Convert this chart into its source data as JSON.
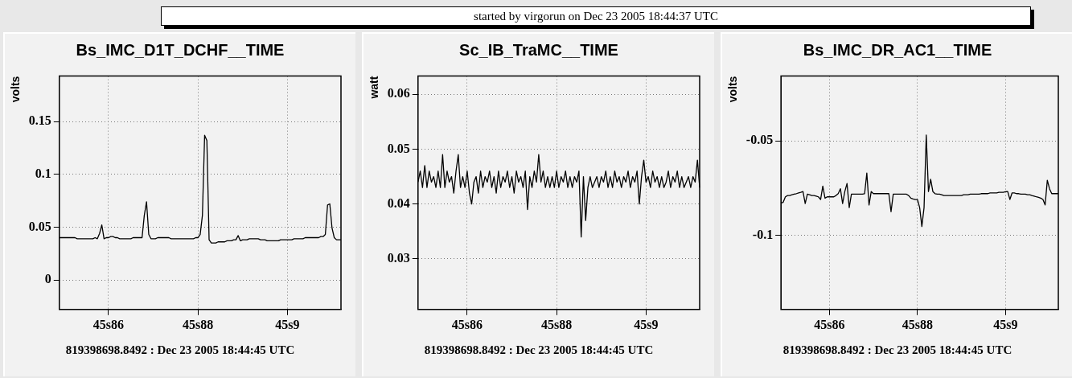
{
  "chart_data": [
    {
      "type": "other",
      "title": "started by virgorun on Dec 23 2005 18:44:37 UTC"
    },
    {
      "type": "line",
      "title": "Bs_IMC_D1T_DCHF__TIME",
      "ylabel": "volts",
      "annotations": [
        "819398698.8492 : Dec 23 2005 18:44:45 UTC"
      ],
      "grid": true,
      "line_style": "solid",
      "categories": [
        null,
        null,
        null,
        null,
        null,
        null,
        null,
        null,
        null,
        null,
        null,
        null,
        null,
        null,
        null,
        null,
        null,
        null,
        null,
        null,
        null,
        null,
        "45s86",
        null,
        null,
        null,
        null,
        null,
        null,
        null,
        null,
        null,
        null,
        null,
        null,
        null,
        null,
        null,
        null,
        null,
        null,
        null,
        null,
        null,
        null,
        null,
        null,
        null,
        null,
        null,
        null,
        null,
        null,
        null,
        null,
        null,
        null,
        null,
        null,
        null,
        null,
        null,
        "45s88",
        null,
        null,
        null,
        null,
        null,
        null,
        null,
        null,
        null,
        null,
        null,
        null,
        null,
        null,
        null,
        null,
        null,
        null,
        null,
        null,
        null,
        null,
        null,
        null,
        null,
        null,
        null,
        null,
        null,
        null,
        null,
        null,
        null,
        null,
        null,
        null,
        null,
        null,
        null,
        "45s9",
        null,
        null,
        null,
        null,
        null,
        null,
        null,
        null,
        null,
        null,
        null,
        null,
        null,
        null,
        null,
        null,
        null,
        null,
        null,
        null,
        null,
        null,
        null,
        null
      ],
      "ylim": [
        -0.028,
        0.193
      ],
      "yticks": [
        0,
        0.05,
        0.1,
        0.15
      ],
      "series": [
        {
          "color": "#000000",
          "values": [
            0.04,
            0.04,
            0.04,
            0.04,
            0.04,
            0.04,
            0.04,
            0.04,
            0.039,
            0.039,
            0.039,
            0.039,
            0.039,
            0.039,
            0.039,
            0.039,
            0.04,
            0.039,
            0.044,
            0.052,
            0.039,
            0.04,
            0.04,
            0.041,
            0.041,
            0.04,
            0.04,
            0.039,
            0.039,
            0.039,
            0.039,
            0.039,
            0.039,
            0.04,
            0.04,
            0.04,
            0.04,
            0.04,
            0.061,
            0.074,
            0.043,
            0.039,
            0.039,
            0.039,
            0.04,
            0.04,
            0.04,
            0.04,
            0.04,
            0.04,
            0.039,
            0.039,
            0.039,
            0.039,
            0.039,
            0.039,
            0.039,
            0.039,
            0.039,
            0.039,
            0.039,
            0.04,
            0.04,
            0.043,
            0.061,
            0.137,
            0.132,
            0.038,
            0.035,
            0.035,
            0.035,
            0.036,
            0.036,
            0.036,
            0.036,
            0.037,
            0.037,
            0.037,
            0.038,
            0.038,
            0.042,
            0.037,
            0.038,
            0.038,
            0.038,
            0.039,
            0.039,
            0.039,
            0.039,
            0.039,
            0.038,
            0.038,
            0.038,
            0.037,
            0.037,
            0.037,
            0.037,
            0.037,
            0.037,
            0.038,
            0.038,
            0.038,
            0.038,
            0.038,
            0.038,
            0.039,
            0.039,
            0.039,
            0.039,
            0.039,
            0.04,
            0.04,
            0.04,
            0.04,
            0.04,
            0.04,
            0.04,
            0.041,
            0.041,
            0.043,
            0.071,
            0.072,
            0.049,
            0.04,
            0.038,
            0.038,
            0.038
          ]
        }
      ]
    },
    {
      "type": "line",
      "title": "Sc_IB_TraMC__TIME",
      "ylabel": "watt",
      "annotations": [
        "819398698.8492 : Dec 23 2005 18:44:45 UTC"
      ],
      "grid": true,
      "line_style": "solid",
      "categories": [
        null,
        null,
        null,
        null,
        null,
        null,
        null,
        null,
        null,
        null,
        null,
        null,
        null,
        null,
        null,
        null,
        null,
        null,
        null,
        null,
        null,
        null,
        "45s86",
        null,
        null,
        null,
        null,
        null,
        null,
        null,
        null,
        null,
        null,
        null,
        null,
        null,
        null,
        null,
        null,
        null,
        null,
        null,
        null,
        null,
        null,
        null,
        null,
        null,
        null,
        null,
        null,
        null,
        null,
        null,
        null,
        null,
        null,
        null,
        null,
        null,
        null,
        null,
        "45s88",
        null,
        null,
        null,
        null,
        null,
        null,
        null,
        null,
        null,
        null,
        null,
        null,
        null,
        null,
        null,
        null,
        null,
        null,
        null,
        null,
        null,
        null,
        null,
        null,
        null,
        null,
        null,
        null,
        null,
        null,
        null,
        null,
        null,
        null,
        null,
        null,
        null,
        null,
        null,
        "45s9",
        null,
        null,
        null,
        null,
        null,
        null,
        null,
        null,
        null,
        null,
        null,
        null,
        null,
        null,
        null,
        null,
        null,
        null,
        null,
        null,
        null,
        null,
        null,
        null
      ],
      "ylim": [
        0.0208,
        0.0633
      ],
      "yticks": [
        0.03,
        0.04,
        0.05,
        0.06
      ],
      "series": [
        {
          "color": "#000000",
          "values": [
            0.044,
            0.046,
            0.043,
            0.047,
            0.043,
            0.046,
            0.044,
            0.045,
            0.043,
            0.046,
            0.043,
            0.049,
            0.043,
            0.046,
            0.044,
            0.045,
            0.042,
            0.046,
            0.049,
            0.043,
            0.045,
            0.043,
            0.046,
            0.042,
            0.04,
            0.044,
            0.045,
            0.042,
            0.046,
            0.043,
            0.045,
            0.044,
            0.046,
            0.043,
            0.045,
            0.042,
            0.046,
            0.043,
            0.045,
            0.044,
            0.046,
            0.043,
            0.045,
            0.042,
            0.046,
            0.044,
            0.045,
            0.043,
            0.046,
            0.039,
            0.045,
            0.043,
            0.046,
            0.044,
            0.049,
            0.044,
            0.046,
            0.043,
            0.045,
            0.043,
            0.045,
            0.043,
            0.046,
            0.043,
            0.045,
            0.044,
            0.046,
            0.043,
            0.045,
            0.043,
            0.045,
            0.044,
            0.046,
            0.034,
            0.045,
            0.037,
            0.043,
            0.045,
            0.043,
            0.044,
            0.045,
            0.043,
            0.045,
            0.044,
            0.046,
            0.043,
            0.045,
            0.043,
            0.046,
            0.044,
            0.045,
            0.043,
            0.045,
            0.044,
            0.046,
            0.043,
            0.045,
            0.044,
            0.046,
            0.04,
            0.045,
            0.048,
            0.044,
            0.045,
            0.043,
            0.046,
            0.044,
            0.045,
            0.043,
            0.045,
            0.043,
            0.044,
            0.046,
            0.043,
            0.045,
            0.044,
            0.046,
            0.043,
            0.045,
            0.043,
            0.044,
            0.045,
            0.043,
            0.045,
            0.044,
            0.048,
            0.043
          ]
        }
      ]
    },
    {
      "type": "line",
      "title": "Bs_IMC_DR_AC1__TIME",
      "ylabel": "volts",
      "annotations": [
        "819398698.8492 : Dec 23 2005 18:44:45 UTC"
      ],
      "grid": true,
      "line_style": "solid",
      "categories": [
        null,
        null,
        null,
        null,
        null,
        null,
        null,
        null,
        null,
        null,
        null,
        null,
        null,
        null,
        null,
        null,
        null,
        null,
        null,
        null,
        null,
        null,
        "45s86",
        null,
        null,
        null,
        null,
        null,
        null,
        null,
        null,
        null,
        null,
        null,
        null,
        null,
        null,
        null,
        null,
        null,
        null,
        null,
        null,
        null,
        null,
        null,
        null,
        null,
        null,
        null,
        null,
        null,
        null,
        null,
        null,
        null,
        null,
        null,
        null,
        null,
        null,
        null,
        "45s88",
        null,
        null,
        null,
        null,
        null,
        null,
        null,
        null,
        null,
        null,
        null,
        null,
        null,
        null,
        null,
        null,
        null,
        null,
        null,
        null,
        null,
        null,
        null,
        null,
        null,
        null,
        null,
        null,
        null,
        null,
        null,
        null,
        null,
        null,
        null,
        null,
        null,
        null,
        null,
        "45s9",
        null,
        null,
        null,
        null,
        null,
        null,
        null,
        null,
        null,
        null,
        null,
        null,
        null,
        null,
        null,
        null,
        null,
        null,
        null,
        null,
        null,
        null,
        null,
        null
      ],
      "ylim": [
        -0.1394,
        -0.0157
      ],
      "yticks": [
        -0.1,
        -0.05
      ],
      "series": [
        {
          "color": "#000000",
          "values": [
            -0.083,
            -0.0826,
            -0.0797,
            -0.079,
            -0.079,
            -0.0786,
            -0.0783,
            -0.078,
            -0.0776,
            -0.0773,
            -0.0769,
            -0.0833,
            -0.0783,
            -0.0786,
            -0.079,
            -0.079,
            -0.0793,
            -0.0797,
            -0.0811,
            -0.074,
            -0.0804,
            -0.0797,
            -0.0797,
            -0.0797,
            -0.0797,
            -0.079,
            -0.078,
            -0.0754,
            -0.0833,
            -0.0769,
            -0.0726,
            -0.0854,
            -0.0783,
            -0.0783,
            -0.0783,
            -0.0783,
            -0.0783,
            -0.0783,
            -0.078,
            -0.0671,
            -0.084,
            -0.0769,
            -0.078,
            -0.078,
            -0.078,
            -0.078,
            -0.078,
            -0.078,
            -0.078,
            -0.078,
            -0.0876,
            -0.0783,
            -0.0783,
            -0.0783,
            -0.0783,
            -0.0783,
            -0.0783,
            -0.0783,
            -0.079,
            -0.0804,
            -0.0808,
            -0.0811,
            -0.0811,
            -0.0854,
            -0.0954,
            -0.0854,
            -0.0469,
            -0.0769,
            -0.0704,
            -0.0769,
            -0.078,
            -0.0783,
            -0.0783,
            -0.0786,
            -0.079,
            -0.079,
            -0.079,
            -0.079,
            -0.079,
            -0.079,
            -0.079,
            -0.079,
            -0.079,
            -0.0786,
            -0.0786,
            -0.0786,
            -0.0783,
            -0.0783,
            -0.0783,
            -0.0783,
            -0.0783,
            -0.078,
            -0.078,
            -0.078,
            -0.078,
            -0.0776,
            -0.0776,
            -0.0776,
            -0.0776,
            -0.0773,
            -0.0773,
            -0.0773,
            -0.077,
            -0.0769,
            -0.0811,
            -0.0776,
            -0.0776,
            -0.078,
            -0.078,
            -0.0783,
            -0.0783,
            -0.0783,
            -0.0786,
            -0.0786,
            -0.079,
            -0.0793,
            -0.0797,
            -0.08,
            -0.0804,
            -0.0811,
            -0.084,
            -0.0709,
            -0.0754,
            -0.078,
            -0.078,
            -0.078,
            -0.078
          ]
        }
      ]
    }
  ]
}
